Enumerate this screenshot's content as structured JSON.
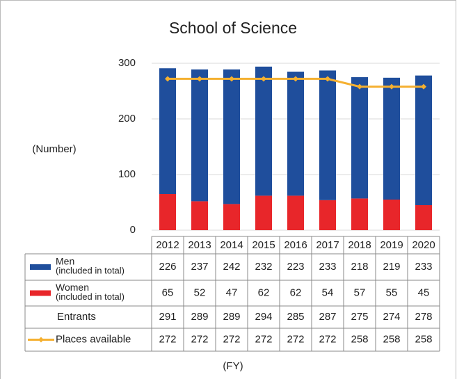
{
  "chart_data": {
    "type": "bar",
    "title": "School of Science",
    "y_label": "(Number)",
    "x_label": "(FY)",
    "categories": [
      "2012",
      "2013",
      "2014",
      "2015",
      "2016",
      "2017",
      "2018",
      "2019",
      "2020"
    ],
    "ylim": [
      0,
      300
    ],
    "yticks": [
      0,
      100,
      200,
      300
    ],
    "grid": true,
    "stacked": true,
    "series": [
      {
        "name": "Women",
        "note": "(included in total)",
        "color": "#e8262a",
        "type": "bar",
        "values": [
          65,
          52,
          47,
          62,
          62,
          54,
          57,
          55,
          45
        ]
      },
      {
        "name": "Men",
        "note": "(included in total)",
        "color": "#1f4e9c",
        "type": "bar",
        "values": [
          226,
          237,
          242,
          232,
          223,
          233,
          218,
          219,
          233
        ]
      },
      {
        "name": "Entrants",
        "type": "table",
        "values": [
          291,
          289,
          289,
          294,
          285,
          287,
          275,
          274,
          278
        ]
      },
      {
        "name": "Places available",
        "color": "#f5b030",
        "type": "line",
        "values": [
          272,
          272,
          272,
          272,
          272,
          272,
          258,
          258,
          258
        ]
      }
    ],
    "table_order": [
      1,
      0,
      2,
      3
    ]
  }
}
